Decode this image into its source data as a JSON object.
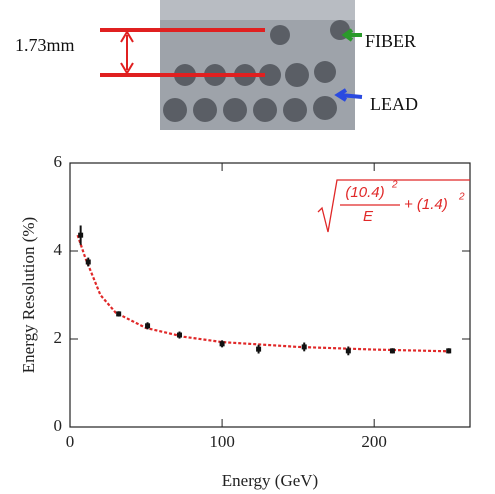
{
  "annotations": {
    "gap": "1.73mm",
    "fiber": "FIBER",
    "lead": "LEAD"
  },
  "chart_data": {
    "type": "scatter",
    "x_label": "Energy (GeV)",
    "y_label": "Energy Resolution (%)",
    "formula": {
      "numerator": "(10.4)",
      "exponent1": "2",
      "denominator": "E",
      "term2": "+ (1.4)",
      "exponent2": "2"
    },
    "xlim": [
      0,
      263
    ],
    "ylim": [
      0,
      6
    ],
    "xticks": [
      0,
      100,
      200
    ],
    "yticks": [
      0,
      2,
      4,
      6
    ],
    "series": [
      {
        "color": "#111111",
        "x": [
          7,
          12,
          32,
          51,
          72,
          100,
          124,
          154,
          183,
          212,
          249
        ],
        "values": [
          4.36,
          3.75,
          2.57,
          2.3,
          2.09,
          1.89,
          1.77,
          1.82,
          1.73,
          1.73,
          1.73
        ],
        "errors": [
          0.22,
          0.1,
          0.06,
          0.08,
          0.08,
          0.08,
          0.1,
          0.1,
          0.1,
          0.06,
          0.06
        ]
      },
      {
        "color": "#e02828",
        "x": [
          5,
          10,
          20,
          30,
          50,
          75,
          100,
          150,
          200,
          250
        ],
        "values": [
          4.36,
          3.85,
          3.0,
          2.6,
          2.25,
          2.05,
          1.93,
          1.82,
          1.76,
          1.72
        ]
      }
    ]
  }
}
